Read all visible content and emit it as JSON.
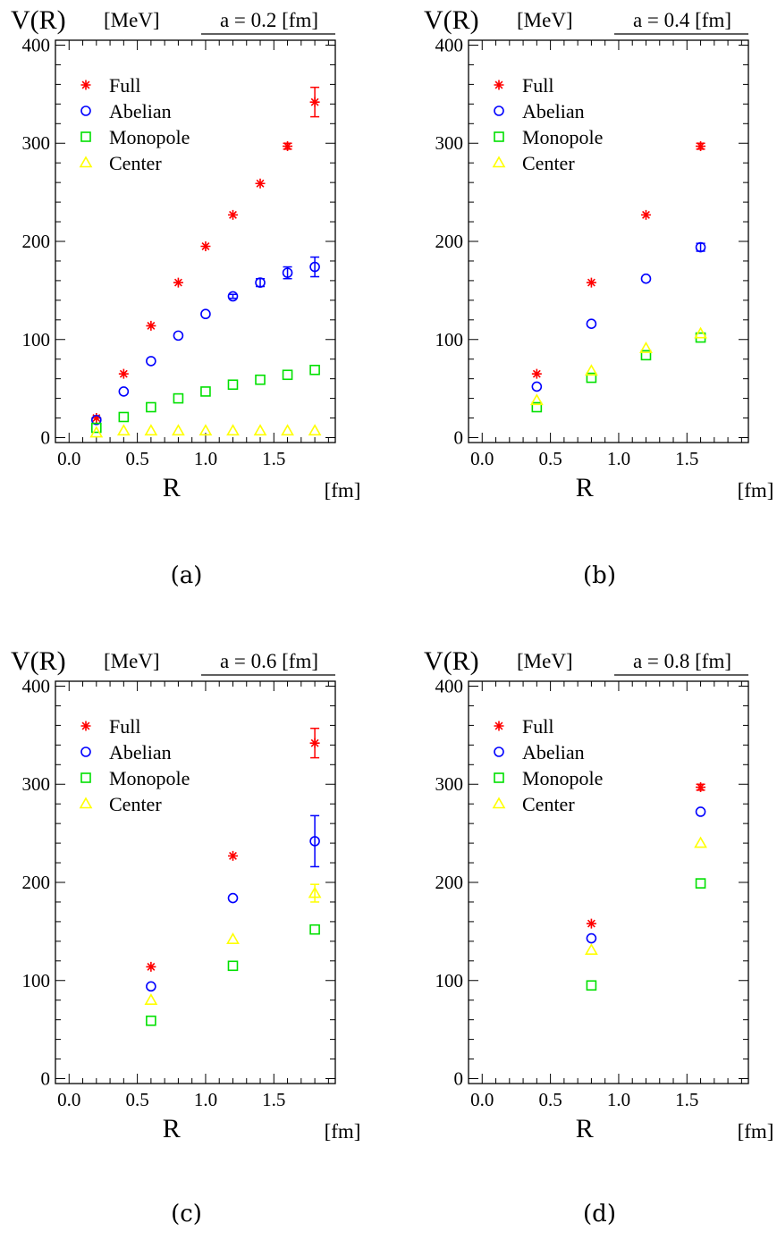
{
  "chart_data": [
    {
      "type": "scatter",
      "panel_label": "(a)",
      "title": "V(R)",
      "title_unit": "[MeV]",
      "annotation": "a = 0.2 [fm]",
      "xlabel": "R",
      "xunit": "[fm]",
      "xlim": [
        -0.1,
        1.95
      ],
      "ylim": [
        -5,
        405
      ],
      "xticks": [
        "0.0",
        "0.5",
        "1.0",
        "1.5"
      ],
      "yticks": [
        "0",
        "100",
        "200",
        "300",
        "400"
      ],
      "legend_position": "top-left",
      "series": [
        {
          "name": "Full",
          "marker": "asterisk",
          "color": "#ff0000",
          "points": [
            [
              0.2,
              20,
              0
            ],
            [
              0.4,
              65,
              0
            ],
            [
              0.6,
              114,
              0
            ],
            [
              0.8,
              158,
              0
            ],
            [
              1.0,
              195,
              0
            ],
            [
              1.2,
              227,
              0
            ],
            [
              1.4,
              259,
              0
            ],
            [
              1.6,
              297,
              3
            ],
            [
              1.8,
              342,
              15
            ]
          ]
        },
        {
          "name": "Abelian",
          "marker": "circle",
          "color": "#0000ff",
          "points": [
            [
              0.2,
              18,
              0
            ],
            [
              0.4,
              47,
              0
            ],
            [
              0.6,
              78,
              0
            ],
            [
              0.8,
              104,
              0
            ],
            [
              1.0,
              126,
              0
            ],
            [
              1.2,
              144,
              2
            ],
            [
              1.4,
              158,
              4
            ],
            [
              1.6,
              168,
              6
            ],
            [
              1.8,
              174,
              10
            ]
          ]
        },
        {
          "name": "Monopole",
          "marker": "square",
          "color": "#00e000",
          "points": [
            [
              0.2,
              10,
              0
            ],
            [
              0.4,
              21,
              0
            ],
            [
              0.6,
              31,
              0
            ],
            [
              0.8,
              40,
              0
            ],
            [
              1.0,
              47,
              0
            ],
            [
              1.2,
              54,
              0
            ],
            [
              1.4,
              59,
              0
            ],
            [
              1.6,
              64,
              0
            ],
            [
              1.8,
              69,
              0
            ]
          ]
        },
        {
          "name": "Center",
          "marker": "triangle",
          "color": "#ffff00",
          "points": [
            [
              0.2,
              5,
              0
            ],
            [
              0.4,
              7,
              0
            ],
            [
              0.6,
              7,
              0
            ],
            [
              0.8,
              7,
              0
            ],
            [
              1.0,
              7,
              0
            ],
            [
              1.2,
              7,
              0
            ],
            [
              1.4,
              7,
              0
            ],
            [
              1.6,
              7,
              0
            ],
            [
              1.8,
              7,
              0
            ]
          ]
        }
      ]
    },
    {
      "type": "scatter",
      "panel_label": "(b)",
      "title": "V(R)",
      "title_unit": "[MeV]",
      "annotation": "a = 0.4 [fm]",
      "xlabel": "R",
      "xunit": "[fm]",
      "xlim": [
        -0.1,
        1.95
      ],
      "ylim": [
        -5,
        405
      ],
      "xticks": [
        "0.0",
        "0.5",
        "1.0",
        "1.5"
      ],
      "yticks": [
        "0",
        "100",
        "200",
        "300",
        "400"
      ],
      "legend_position": "top-left",
      "series": [
        {
          "name": "Full",
          "marker": "asterisk",
          "color": "#ff0000",
          "points": [
            [
              0.4,
              65,
              0
            ],
            [
              0.8,
              158,
              0
            ],
            [
              1.2,
              227,
              0
            ],
            [
              1.6,
              297,
              3
            ]
          ]
        },
        {
          "name": "Abelian",
          "marker": "circle",
          "color": "#0000ff",
          "points": [
            [
              0.4,
              52,
              0
            ],
            [
              0.8,
              116,
              0
            ],
            [
              1.2,
              162,
              0
            ],
            [
              1.6,
              194,
              4
            ]
          ]
        },
        {
          "name": "Monopole",
          "marker": "square",
          "color": "#00e000",
          "points": [
            [
              0.4,
              31,
              0
            ],
            [
              0.8,
              61,
              0
            ],
            [
              1.2,
              84,
              0
            ],
            [
              1.6,
              102,
              0
            ]
          ]
        },
        {
          "name": "Center",
          "marker": "triangle",
          "color": "#ffff00",
          "points": [
            [
              0.4,
              38,
              0
            ],
            [
              0.8,
              68,
              0
            ],
            [
              1.2,
              91,
              0
            ],
            [
              1.6,
              106,
              0
            ]
          ]
        }
      ]
    },
    {
      "type": "scatter",
      "panel_label": "(c)",
      "title": "V(R)",
      "title_unit": "[MeV]",
      "annotation": "a = 0.6 [fm]",
      "xlabel": "R",
      "xunit": "[fm]",
      "xlim": [
        -0.1,
        1.95
      ],
      "ylim": [
        -5,
        405
      ],
      "xticks": [
        "0.0",
        "0.5",
        "1.0",
        "1.5"
      ],
      "yticks": [
        "0",
        "100",
        "200",
        "300",
        "400"
      ],
      "legend_position": "top-left",
      "series": [
        {
          "name": "Full",
          "marker": "asterisk",
          "color": "#ff0000",
          "points": [
            [
              0.6,
              114,
              0
            ],
            [
              1.2,
              227,
              0
            ],
            [
              1.8,
              342,
              15
            ]
          ]
        },
        {
          "name": "Abelian",
          "marker": "circle",
          "color": "#0000ff",
          "points": [
            [
              0.6,
              94,
              0
            ],
            [
              1.2,
              184,
              0
            ],
            [
              1.8,
              242,
              26
            ]
          ]
        },
        {
          "name": "Monopole",
          "marker": "square",
          "color": "#00e000",
          "points": [
            [
              0.6,
              59,
              0
            ],
            [
              1.2,
              115,
              0
            ],
            [
              1.8,
              152,
              0
            ]
          ]
        },
        {
          "name": "Center",
          "marker": "triangle",
          "color": "#ffff00",
          "points": [
            [
              0.6,
              80,
              0
            ],
            [
              1.2,
              142,
              0
            ],
            [
              1.8,
              189,
              9
            ]
          ]
        }
      ]
    },
    {
      "type": "scatter",
      "panel_label": "(d)",
      "title": "V(R)",
      "title_unit": "[MeV]",
      "annotation": "a = 0.8 [fm]",
      "xlabel": "R",
      "xunit": "[fm]",
      "xlim": [
        -0.1,
        1.95
      ],
      "ylim": [
        -5,
        405
      ],
      "xticks": [
        "0.0",
        "0.5",
        "1.0",
        "1.5"
      ],
      "yticks": [
        "0",
        "100",
        "200",
        "300",
        "400"
      ],
      "legend_position": "top-left",
      "series": [
        {
          "name": "Full",
          "marker": "asterisk",
          "color": "#ff0000",
          "points": [
            [
              0.8,
              158,
              0
            ],
            [
              1.6,
              297,
              3
            ]
          ]
        },
        {
          "name": "Abelian",
          "marker": "circle",
          "color": "#0000ff",
          "points": [
            [
              0.8,
              143,
              0
            ],
            [
              1.6,
              272,
              0
            ]
          ]
        },
        {
          "name": "Monopole",
          "marker": "square",
          "color": "#00e000",
          "points": [
            [
              0.8,
              95,
              0
            ],
            [
              1.6,
              199,
              0
            ]
          ]
        },
        {
          "name": "Center",
          "marker": "triangle",
          "color": "#ffff00",
          "points": [
            [
              0.8,
              131,
              0
            ],
            [
              1.6,
              240,
              0
            ]
          ]
        }
      ]
    }
  ]
}
